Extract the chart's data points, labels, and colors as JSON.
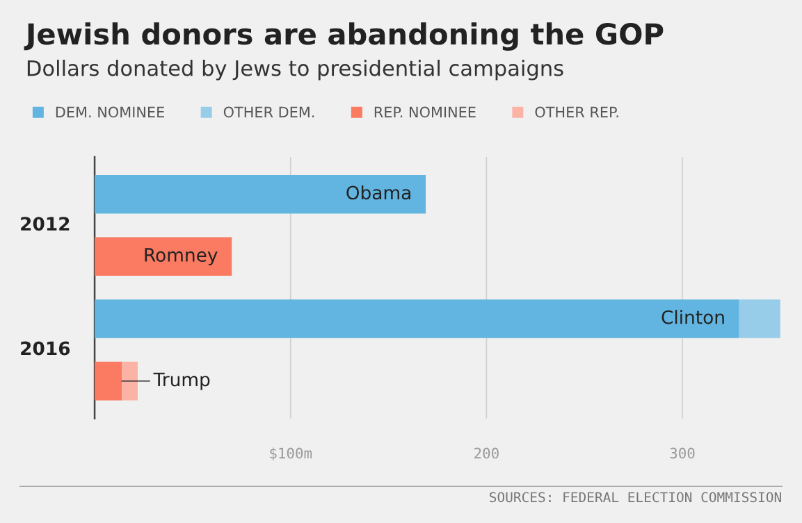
{
  "chart_data": {
    "type": "bar",
    "orientation": "horizontal",
    "stacked": true,
    "title": "Jewish donors are abandoning the GOP",
    "subtitle": "Dollars donated by Jews to presidential campaigns",
    "categories": [
      null,
      null,
      null,
      null
    ],
    "series": [
      {
        "name": "DEM. NOMINEE",
        "color": "#62b5e0",
        "values": [
          169,
          null,
          329,
          null
        ],
        "value_labels": [
          "Obama",
          null,
          "Clinton",
          null
        ]
      },
      {
        "name": "OTHER DEM.",
        "color": "#98cdea",
        "values": [
          null,
          null,
          21,
          null
        ]
      },
      {
        "name": "REP. NOMINEE",
        "color": "#fa7a62",
        "values": [
          null,
          70,
          null,
          14
        ],
        "value_labels": [
          null,
          "Romney",
          null,
          "Trump"
        ]
      },
      {
        "name": "OTHER REP.",
        "color": "#fbb3a6",
        "values": [
          null,
          null,
          null,
          8
        ]
      }
    ],
    "xlim": [
      0,
      350
    ],
    "xticks": [
      {
        "value": 100,
        "label": "$100m"
      },
      200,
      300
    ],
    "grid": "x",
    "legend": "top",
    "annotations": [
      "2012",
      "2016",
      "SOURCES: FEDERAL ELECTION COMMISSION"
    ]
  }
}
